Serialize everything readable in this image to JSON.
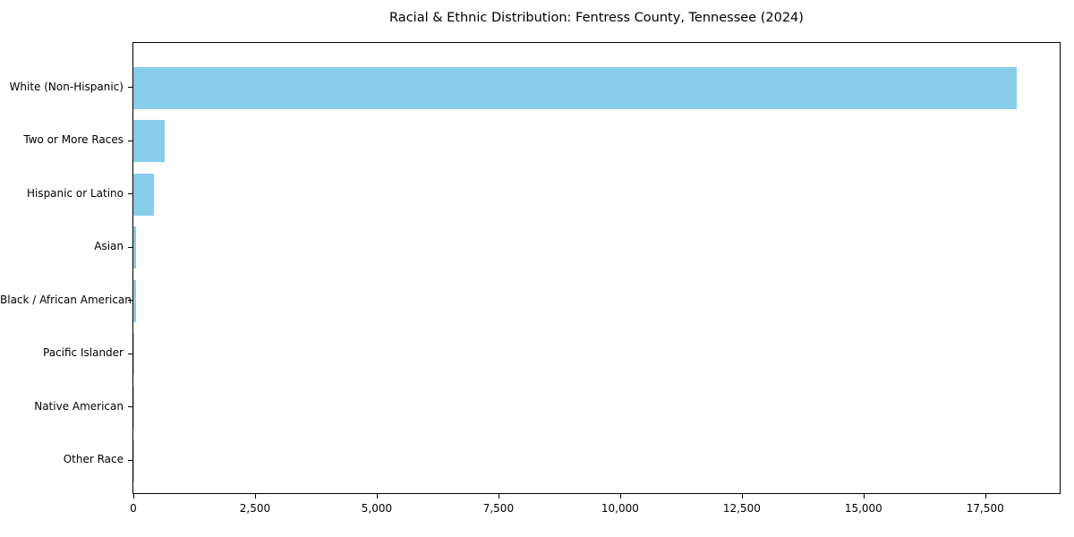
{
  "chart_data": {
    "type": "bar",
    "orientation": "horizontal",
    "title": "Racial & Ethnic Distribution: Fentress County, Tennessee (2024)",
    "xlabel": "",
    "ylabel": "",
    "categories": [
      "White (Non-Hispanic)",
      "Two or More Races",
      "Hispanic or Latino",
      "Asian",
      "Black / African American",
      "Pacific Islander",
      "Native American",
      "Other Race"
    ],
    "values": [
      18150,
      640,
      425,
      60,
      55,
      15,
      10,
      5
    ],
    "xlim": [
      0,
      19030
    ],
    "x_ticks": [
      0,
      2500,
      5000,
      7500,
      10000,
      12500,
      15000,
      17500
    ],
    "x_tick_labels": [
      "0",
      "2,500",
      "5,000",
      "7,500",
      "10,000",
      "12,500",
      "15,000",
      "17,500"
    ],
    "grid": false,
    "legend": false
  },
  "style": {
    "bar_color": "#87ceeb",
    "axis_color": "#000000",
    "background": "#ffffff",
    "text_color": "#000000"
  }
}
